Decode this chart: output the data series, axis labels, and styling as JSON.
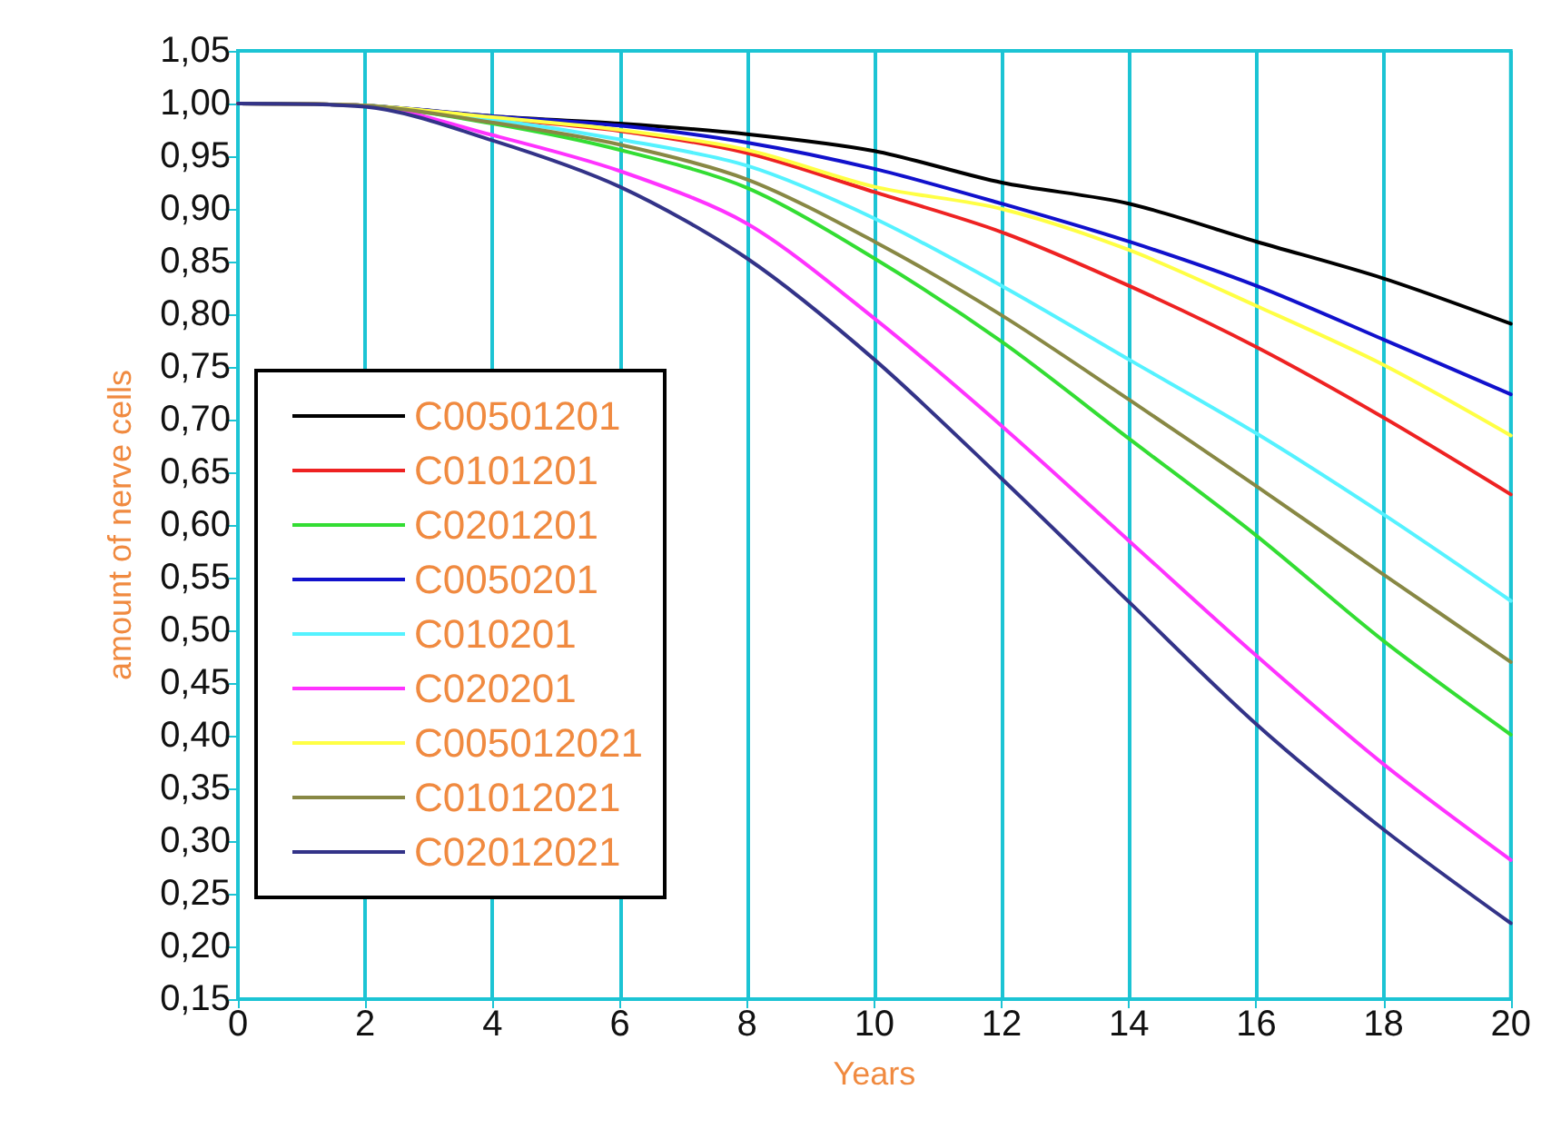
{
  "chart_data": {
    "type": "line",
    "xlabel": "Years",
    "ylabel": "amount of nerve cells",
    "x": [
      0,
      2,
      4,
      6,
      8,
      10,
      12,
      14,
      16,
      18,
      20
    ],
    "series": [
      {
        "name": "C00501201",
        "color": "#000000",
        "values": [
          1,
          0.998,
          0.988,
          0.981,
          0.971,
          0.955,
          0.925,
          0.905,
          0.869,
          0.834,
          0.791
        ]
      },
      {
        "name": "C0101201",
        "color": "#ee2222",
        "values": [
          1,
          0.998,
          0.986,
          0.974,
          0.953,
          0.916,
          0.878,
          0.827,
          0.769,
          0.702,
          0.629
        ]
      },
      {
        "name": "C0201201",
        "color": "#33dd33",
        "values": [
          1,
          0.998,
          0.981,
          0.956,
          0.92,
          0.853,
          0.774,
          0.682,
          0.59,
          0.49,
          0.401
        ]
      },
      {
        "name": "C0050201",
        "color": "#1111cc",
        "values": [
          1,
          0.998,
          0.988,
          0.979,
          0.963,
          0.938,
          0.905,
          0.869,
          0.827,
          0.776,
          0.724
        ]
      },
      {
        "name": "C010201",
        "color": "#55f2ff",
        "values": [
          1,
          0.998,
          0.985,
          0.966,
          0.941,
          0.891,
          0.827,
          0.757,
          0.687,
          0.61,
          0.528
        ]
      },
      {
        "name": "C020201",
        "color": "#ff33ff",
        "values": [
          1,
          0.998,
          0.97,
          0.936,
          0.886,
          0.796,
          0.694,
          0.585,
          0.476,
          0.373,
          0.282
        ]
      },
      {
        "name": "C005012021",
        "color": "#ffff44",
        "values": [
          1,
          0.998,
          0.987,
          0.975,
          0.956,
          0.921,
          0.9,
          0.861,
          0.808,
          0.752,
          0.685
        ]
      },
      {
        "name": "C01012021",
        "color": "#888844",
        "values": [
          1,
          0.998,
          0.982,
          0.961,
          0.928,
          0.869,
          0.799,
          0.719,
          0.637,
          0.553,
          0.47
        ]
      },
      {
        "name": "C02012021",
        "color": "#333388",
        "values": [
          1,
          0.997,
          0.965,
          0.921,
          0.853,
          0.757,
          0.644,
          0.527,
          0.411,
          0.311,
          0.222
        ]
      }
    ],
    "xlim": [
      0,
      20
    ],
    "xticks": [
      0,
      2,
      4,
      6,
      8,
      10,
      12,
      14,
      16,
      18,
      20
    ],
    "ylim": [
      0.15,
      1.05
    ],
    "yticks": [
      {
        "value": 0.15,
        "label": "0,15"
      },
      {
        "value": 0.2,
        "label": "0,20"
      },
      {
        "value": 0.25,
        "label": "0,25"
      },
      {
        "value": 0.3,
        "label": "0,30"
      },
      {
        "value": 0.35,
        "label": "0,35"
      },
      {
        "value": 0.4,
        "label": "0,40"
      },
      {
        "value": 0.45,
        "label": "0,45"
      },
      {
        "value": 0.5,
        "label": "0,50"
      },
      {
        "value": 0.55,
        "label": "0,55"
      },
      {
        "value": 0.6,
        "label": "0,60"
      },
      {
        "value": 0.65,
        "label": "0,65"
      },
      {
        "value": 0.7,
        "label": "0,70"
      },
      {
        "value": 0.75,
        "label": "0,75"
      },
      {
        "value": 0.8,
        "label": "0,80"
      },
      {
        "value": 0.85,
        "label": "0,85"
      },
      {
        "value": 0.9,
        "label": "0,90"
      },
      {
        "value": 0.95,
        "label": "0,95"
      },
      {
        "value": 1,
        "label": "1,00"
      },
      {
        "value": 1.05,
        "label": "1,05"
      }
    ],
    "grid": "x",
    "legend": "left",
    "marker": "none",
    "line_style": "solid"
  }
}
